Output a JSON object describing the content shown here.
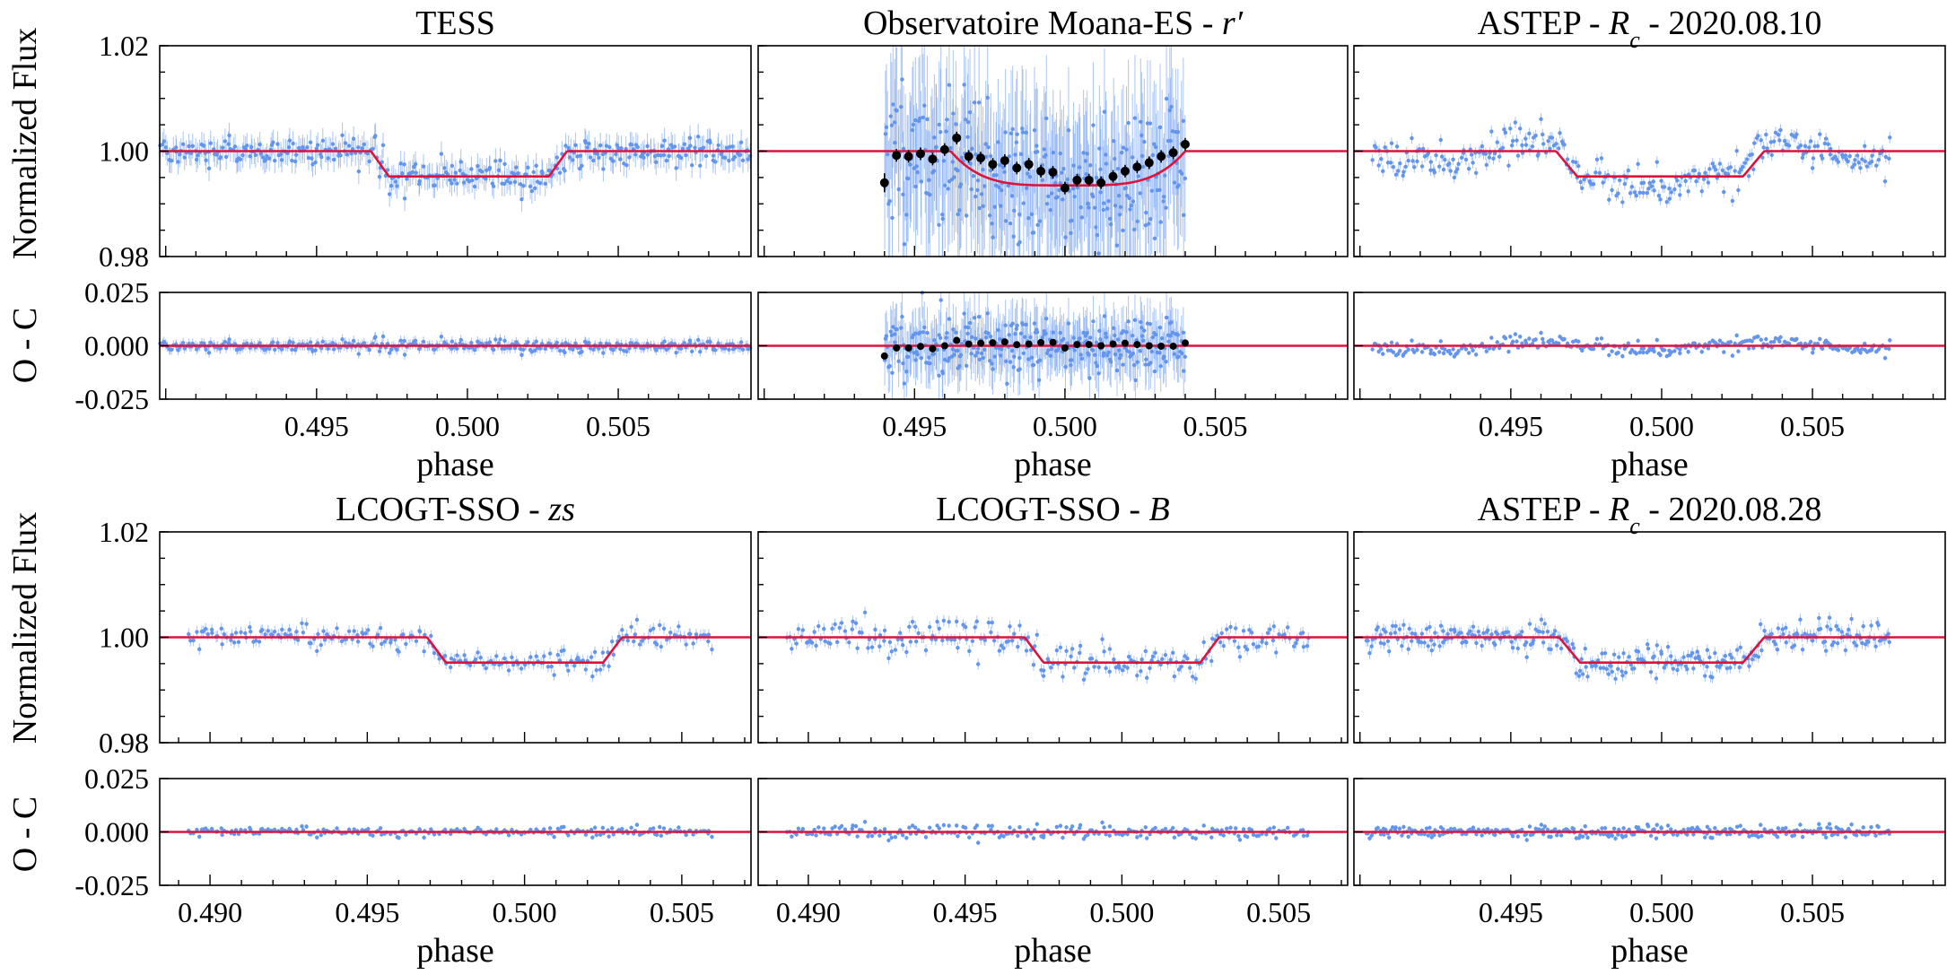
{
  "figure": {
    "ylabel_flux": "Normalized Flux",
    "ylabel_resid": "O - C",
    "xlabel": "phase",
    "flux_ticks": [
      "1.02",
      "1.00",
      "0.98"
    ],
    "resid_ticks": [
      "0.025",
      "0.000",
      "-0.025"
    ]
  },
  "chart_data": [
    {
      "type": "scatter",
      "title_parts": [
        {
          "text": "TESS"
        }
      ],
      "xlabel": "phase",
      "ylabel": "Normalized Flux",
      "xlim": [
        0.4898,
        0.5094
      ],
      "ylim_flux": [
        0.98,
        1.02
      ],
      "ylim_resid": [
        -0.025,
        0.025
      ],
      "x_ticks": [
        "0.495",
        "0.500",
        "0.505"
      ],
      "x_tick_values": [
        0.495,
        0.5,
        0.505
      ],
      "data_x_range": [
        0.4898,
        0.5094
      ],
      "points": 360,
      "error": 0.0024,
      "scatter": 0.0014,
      "seed": 3,
      "variability": 0,
      "binned": false,
      "model": {
        "depth": 0.0048,
        "t1": 0.4968,
        "t2": 0.4974,
        "t3": 0.5027,
        "t4": 0.5033
      },
      "colors": {
        "data": "#6495ed",
        "model": "#dc143c"
      }
    },
    {
      "type": "scatter",
      "title_parts": [
        {
          "text": "Observatoire Moana-ES - "
        },
        {
          "text": "r′",
          "italic": true
        }
      ],
      "xlabel": "phase",
      "ylabel": "Normalized Flux",
      "xlim": [
        0.4898,
        0.5094
      ],
      "ylim_flux": [
        0.98,
        1.02
      ],
      "ylim_resid": [
        -0.025,
        0.025
      ],
      "x_ticks": [
        "0.495",
        "0.500",
        "0.505"
      ],
      "x_tick_values": [
        0.495,
        0.5,
        0.505
      ],
      "data_x_range": [
        0.494,
        0.504
      ],
      "points": 320,
      "error": 0.012,
      "scatter": 0.007,
      "seed": 11,
      "variability": 0,
      "binned": true,
      "binned_points": {
        "x": [
          0.494,
          0.4944,
          0.4948,
          0.4952,
          0.4956,
          0.496,
          0.4964,
          0.4968,
          0.4972,
          0.4976,
          0.498,
          0.4984,
          0.4988,
          0.4992,
          0.4996,
          0.5,
          0.5004,
          0.5008,
          0.5012,
          0.5016,
          0.502,
          0.5024,
          0.5028,
          0.5032,
          0.5036,
          0.504
        ],
        "y": [
          0.994,
          0.9992,
          0.999,
          0.9995,
          0.9985,
          1.0003,
          1.0025,
          0.999,
          0.9987,
          0.9975,
          0.9982,
          0.9968,
          0.9975,
          0.9962,
          0.996,
          0.993,
          0.9945,
          0.9945,
          0.994,
          0.9952,
          0.9962,
          0.997,
          0.9978,
          0.999,
          0.9997,
          1.0013
        ],
        "err": [
          0.0018,
          0.0012,
          0.0012,
          0.0012,
          0.0012,
          0.0012,
          0.0012,
          0.0012,
          0.0012,
          0.0012,
          0.0012,
          0.0012,
          0.0012,
          0.0012,
          0.0012,
          0.0012,
          0.0012,
          0.0012,
          0.0012,
          0.0012,
          0.0012,
          0.0012,
          0.0012,
          0.0012,
          0.0012,
          0.0012
        ],
        "resid": [
          -0.0048,
          -0.001,
          -0.001,
          -0.0003,
          -0.0014,
          0.0,
          0.0025,
          0.0008,
          0.0012,
          0.0014,
          0.0018,
          0.0005,
          0.0008,
          0.0015,
          0.0016,
          -0.001,
          0.0006,
          0.0006,
          0.0,
          0.0008,
          0.0012,
          0.0006,
          0.0,
          -0.0002,
          -0.0002,
          0.0013
        ]
      },
      "model": {
        "depth": 0.0065,
        "shape": "curved",
        "t1": 0.4962,
        "t4": 0.504
      },
      "colors": {
        "data": "#6495ed",
        "model": "#dc143c",
        "binned": "#000000"
      }
    },
    {
      "type": "scatter",
      "title_parts": [
        {
          "text": "ASTEP - "
        },
        {
          "text": "R",
          "italic": true
        },
        {
          "text": "c",
          "italic": true,
          "sub": true
        },
        {
          "text": " - 2020.08.10"
        }
      ],
      "xlabel": "phase",
      "ylabel": "Normalized Flux",
      "xlim": [
        0.4898,
        0.5094
      ],
      "ylim_flux": [
        0.98,
        1.02
      ],
      "ylim_resid": [
        -0.025,
        0.025
      ],
      "x_ticks": [
        "0.495",
        "0.500",
        "0.505"
      ],
      "x_tick_values": [
        0.495,
        0.5,
        0.505
      ],
      "data_x_range": [
        0.4904,
        0.5076
      ],
      "points": 300,
      "error": 0.0011,
      "scatter": 0.0017,
      "seed": 23,
      "variability": 0.0018,
      "binned": false,
      "model": {
        "depth": 0.0048,
        "t1": 0.4965,
        "t2": 0.4972,
        "t3": 0.5027,
        "t4": 0.5034
      },
      "colors": {
        "data": "#6495ed",
        "model": "#dc143c"
      }
    },
    {
      "type": "scatter",
      "title_parts": [
        {
          "text": "LCOGT-SSO - "
        },
        {
          "text": "zs",
          "italic": true
        }
      ],
      "xlabel": "phase",
      "ylabel": "Normalized Flux",
      "xlim": [
        0.4884,
        0.5072
      ],
      "ylim_flux": [
        0.98,
        1.02
      ],
      "ylim_resid": [
        -0.025,
        0.025
      ],
      "x_ticks": [
        "0.490",
        "0.495",
        "0.500",
        "0.505"
      ],
      "x_tick_values": [
        0.49,
        0.495,
        0.5,
        0.505
      ],
      "data_x_range": [
        0.4893,
        0.506
      ],
      "points": 220,
      "error": 0.0011,
      "scatter": 0.0011,
      "seed": 37,
      "variability": 0,
      "binned": false,
      "model": {
        "depth": 0.0048,
        "t1": 0.4969,
        "t2": 0.4975,
        "t3": 0.5025,
        "t4": 0.5031
      },
      "colors": {
        "data": "#6495ed",
        "model": "#dc143c"
      }
    },
    {
      "type": "scatter",
      "title_parts": [
        {
          "text": "LCOGT-SSO - "
        },
        {
          "text": "B",
          "italic": true
        }
      ],
      "xlabel": "phase",
      "ylabel": "Normalized Flux",
      "xlim": [
        0.4884,
        0.5072
      ],
      "ylim_flux": [
        0.98,
        1.02
      ],
      "ylim_resid": [
        -0.025,
        0.025
      ],
      "x_ticks": [
        "0.490",
        "0.495",
        "0.500",
        "0.505"
      ],
      "x_tick_values": [
        0.49,
        0.495,
        0.5,
        0.505
      ],
      "data_x_range": [
        0.4893,
        0.506
      ],
      "points": 230,
      "error": 0.0011,
      "scatter": 0.0016,
      "seed": 51,
      "variability": 0,
      "binned": false,
      "model": {
        "depth": 0.0048,
        "t1": 0.4969,
        "t2": 0.4975,
        "t3": 0.5025,
        "t4": 0.5031
      },
      "colors": {
        "data": "#6495ed",
        "model": "#dc143c"
      }
    },
    {
      "type": "scatter",
      "title_parts": [
        {
          "text": "ASTEP - "
        },
        {
          "text": "R",
          "italic": true
        },
        {
          "text": "c",
          "italic": true,
          "sub": true
        },
        {
          "text": " - 2020.08.28"
        }
      ],
      "xlabel": "phase",
      "ylabel": "Normalized Flux",
      "xlim": [
        0.4898,
        0.5094
      ],
      "ylim_flux": [
        0.98,
        1.02
      ],
      "ylim_resid": [
        -0.025,
        0.025
      ],
      "x_ticks": [
        "0.495",
        "0.500",
        "0.505"
      ],
      "x_tick_values": [
        0.495,
        0.5,
        0.505
      ],
      "data_x_range": [
        0.4902,
        0.5076
      ],
      "points": 320,
      "error": 0.0011,
      "scatter": 0.0013,
      "seed": 67,
      "variability": 0,
      "binned": false,
      "model": {
        "depth": 0.0048,
        "t1": 0.4966,
        "t2": 0.4973,
        "t3": 0.5027,
        "t4": 0.5034
      },
      "colors": {
        "data": "#6495ed",
        "model": "#dc143c"
      }
    }
  ]
}
